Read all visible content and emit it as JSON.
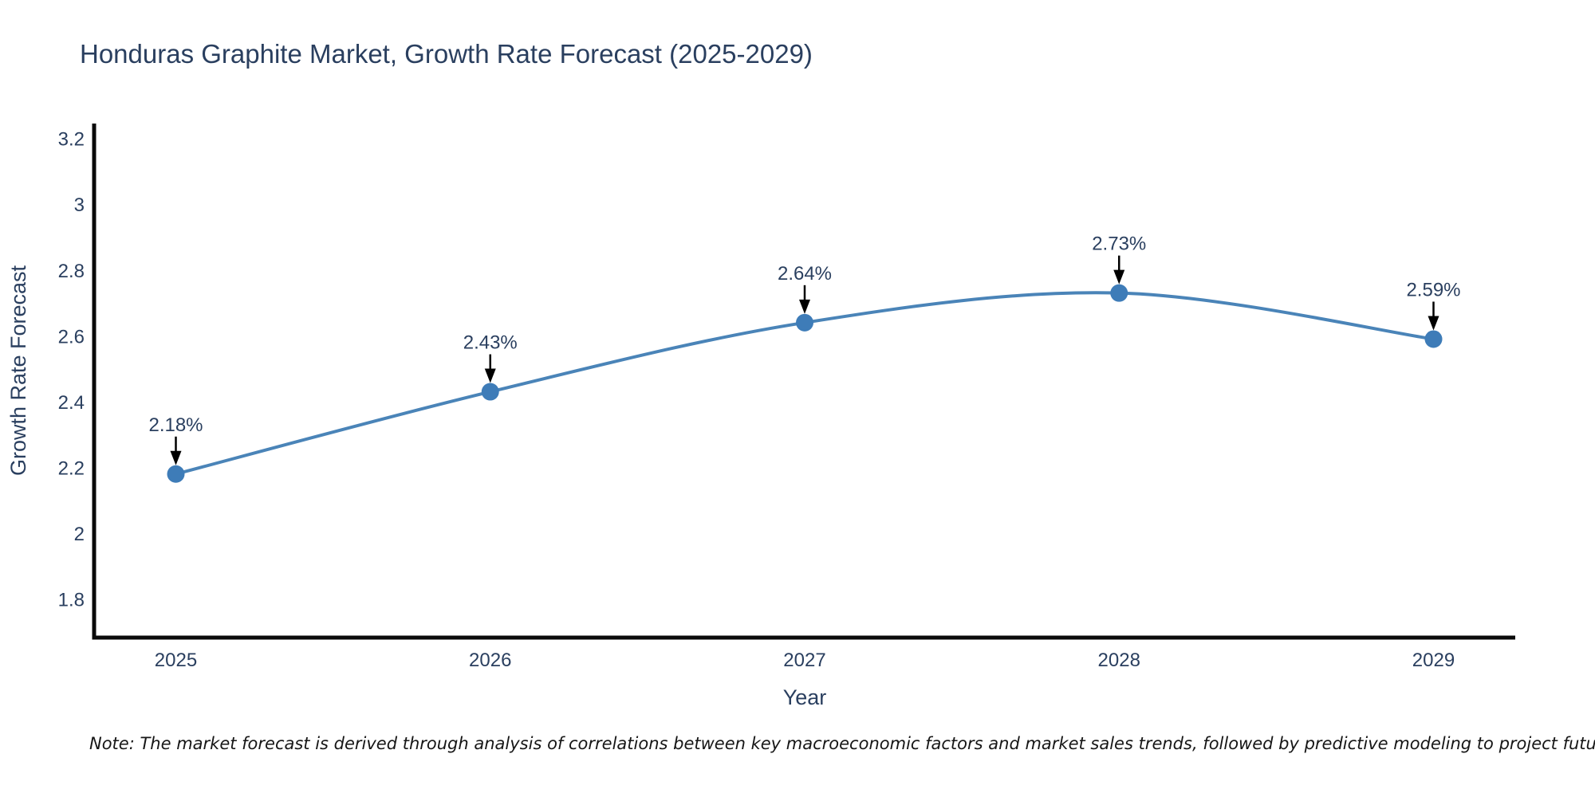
{
  "title": "Honduras Graphite Market, Growth Rate Forecast (2025-2029)",
  "note": "Note: The market forecast is derived through analysis of correlations between key macroeconomic factors and market sales trends, followed by predictive modeling to project future sales",
  "chart_data": {
    "type": "line",
    "line_shape": "spline",
    "title": "Honduras Graphite Market, Growth Rate Forecast (2025-2029)",
    "x": [
      2025,
      2026,
      2027,
      2028,
      2029
    ],
    "y": [
      2.18,
      2.43,
      2.64,
      2.73,
      2.59
    ],
    "point_labels": [
      "2.18%",
      "2.43%",
      "2.64%",
      "2.73%",
      "2.59%"
    ],
    "xlabel": "Year",
    "ylabel": "Growth Rate Forecast",
    "xtick_labels": [
      "2025",
      "2026",
      "2027",
      "2028",
      "2029"
    ],
    "yticks": [
      1.8,
      2,
      2.2,
      2.4,
      2.6,
      2.8,
      3,
      3.2
    ],
    "ytick_labels": [
      "1.8",
      "2",
      "2.2",
      "2.4",
      "2.6",
      "2.8",
      "3",
      "3.2"
    ],
    "xlim": [
      2024.74,
      2029.26
    ],
    "ylim": [
      1.683,
      3.245
    ],
    "grid": false,
    "legend": "none",
    "annotations": "value labels with black down arrows above each marker",
    "colors": {
      "line": "#4a84b8",
      "marker": "#3e7cb8",
      "axis": "#0a0a0a",
      "text": "#2a3f5f",
      "annotation_arrow": "#000000"
    }
  }
}
